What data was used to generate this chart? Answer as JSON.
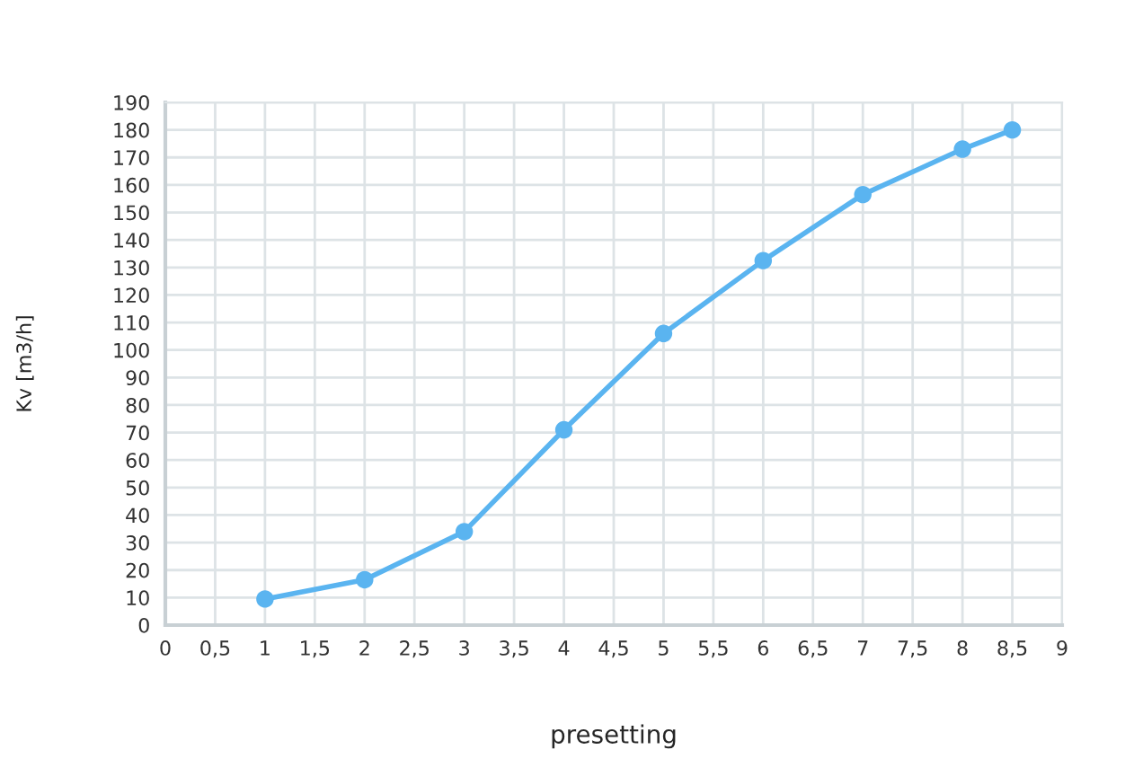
{
  "chart_data": {
    "type": "line",
    "xlabel": "presetting",
    "ylabel": "Kv [m3/h]",
    "x": [
      1,
      2,
      3,
      4,
      5,
      6,
      7,
      8,
      8.5
    ],
    "series": [
      {
        "color": "#5ab4f0",
        "values": [
          9.5,
          16.5,
          34,
          71,
          106,
          132.5,
          156.5,
          173,
          180
        ]
      }
    ],
    "xlim": [
      0,
      9
    ],
    "xticks": [
      0,
      {
        "value": 0.5,
        "label": "0,5"
      },
      1,
      {
        "value": 1.5,
        "label": "1,5"
      },
      2,
      {
        "value": 2.5,
        "label": "2,5"
      },
      3,
      {
        "value": 3.5,
        "label": "3,5"
      },
      4,
      {
        "value": 4.5,
        "label": "4,5"
      },
      5,
      {
        "value": 5.5,
        "label": "5,5"
      },
      6,
      {
        "value": 6.5,
        "label": "6,5"
      },
      7,
      {
        "value": 7.5,
        "label": "7,5"
      },
      8,
      {
        "value": 8.5,
        "label": "8,5"
      },
      9
    ],
    "ylim": [
      0,
      190
    ],
    "yticks": [
      0,
      10,
      20,
      30,
      40,
      50,
      60,
      70,
      80,
      90,
      100,
      110,
      120,
      130,
      140,
      150,
      160,
      170,
      180,
      190
    ],
    "grid": true,
    "marker": "circle",
    "line_style": "solid"
  }
}
